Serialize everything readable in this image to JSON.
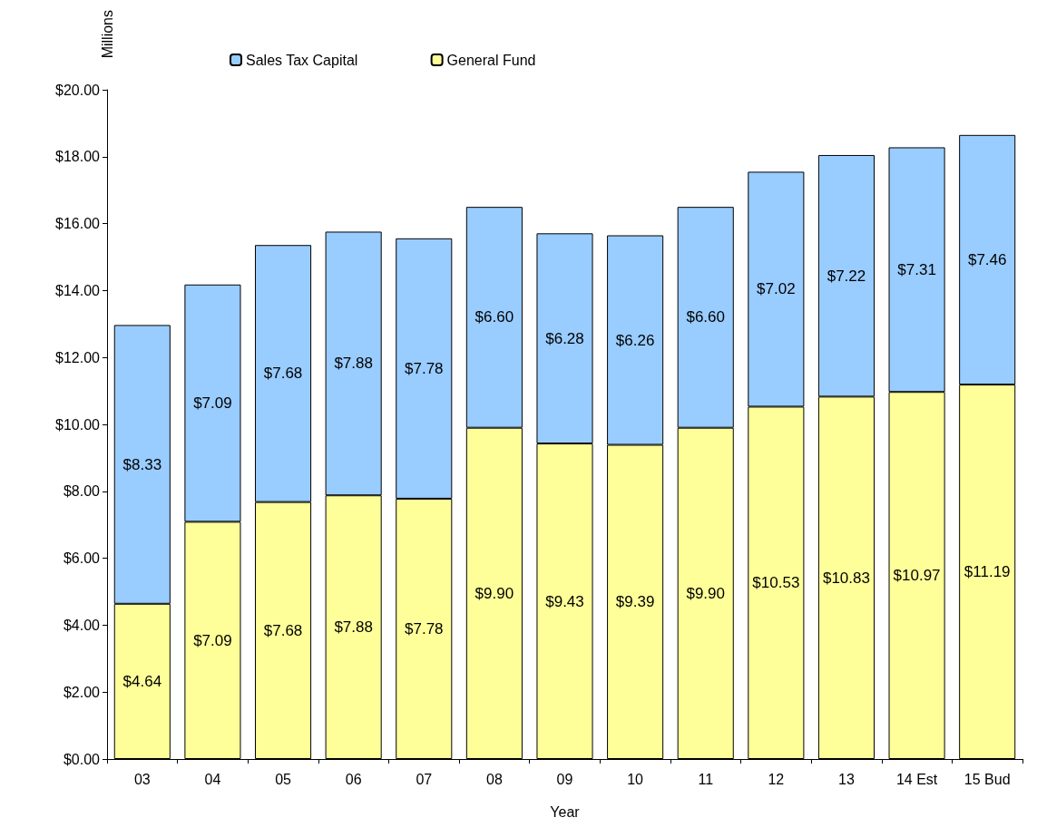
{
  "chart_data": {
    "type": "bar",
    "stacked": true,
    "xlabel": "Year",
    "ylabel": "Millions",
    "categories": [
      "03",
      "04",
      "05",
      "06",
      "07",
      "08",
      "09",
      "10",
      "11",
      "12",
      "13",
      "14 Est",
      "15 Bud"
    ],
    "series": [
      {
        "name": "General Fund",
        "color": "#ffff99",
        "values": [
          4.64,
          7.09,
          7.68,
          7.88,
          7.78,
          9.9,
          9.43,
          9.39,
          9.9,
          10.53,
          10.83,
          10.97,
          11.19
        ],
        "value_labels": [
          "$4.64",
          "$7.09",
          "$7.68",
          "$7.88",
          "$7.78",
          "$9.90",
          "$9.43",
          "$9.39",
          "$9.90",
          "$10.53",
          "$10.83",
          "$10.97",
          "$11.19"
        ]
      },
      {
        "name": "Sales Tax Capital",
        "color": "#99ccff",
        "values": [
          8.33,
          7.09,
          7.68,
          7.88,
          7.78,
          6.6,
          6.28,
          6.26,
          6.6,
          7.02,
          7.22,
          7.31,
          7.46
        ],
        "value_labels": [
          "$8.33",
          "$7.09",
          "$7.68",
          "$7.88",
          "$7.78",
          "$6.60",
          "$6.28",
          "$6.26",
          "$6.60",
          "$7.02",
          "$7.22",
          "$7.31",
          "$7.46"
        ]
      }
    ],
    "ylim": [
      0,
      20
    ],
    "yticks": [
      {
        "value": 0,
        "label": "$0.00"
      },
      {
        "value": 2,
        "label": "$2.00"
      },
      {
        "value": 4,
        "label": "$4.00"
      },
      {
        "value": 6,
        "label": "$6.00"
      },
      {
        "value": 8,
        "label": "$8.00"
      },
      {
        "value": 10,
        "label": "$10.00"
      },
      {
        "value": 12,
        "label": "$12.00"
      },
      {
        "value": 14,
        "label": "$14.00"
      },
      {
        "value": 16,
        "label": "$16.00"
      },
      {
        "value": 18,
        "label": "$18.00"
      },
      {
        "value": 20,
        "label": "$20.00"
      }
    ],
    "grid": false,
    "legend": "top"
  }
}
